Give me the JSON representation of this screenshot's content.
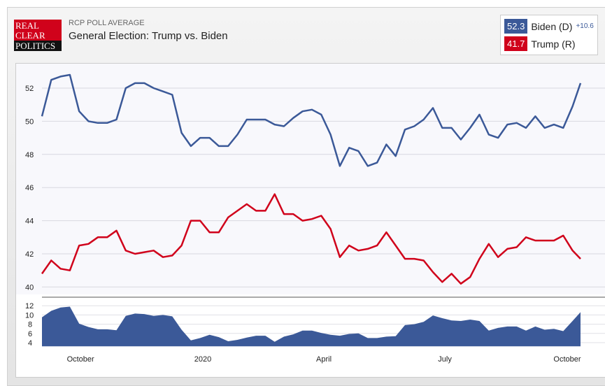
{
  "header": {
    "subtitle": "RCP POLL AVERAGE",
    "title": "General Election: Trump vs. Biden",
    "logo_text": [
      "REAL",
      "CLEAR",
      "POLITICS"
    ]
  },
  "legend": {
    "biden": {
      "value": "52.3",
      "label": "Biden (D)",
      "spread": "+10.6"
    },
    "trump": {
      "value": "41.7",
      "label": "Trump (R)"
    }
  },
  "colors": {
    "biden": "#3b5998",
    "trump": "#d0021b"
  },
  "chart_data": {
    "type": "line",
    "ylim": [
      40,
      53
    ],
    "yticks": [
      40,
      42,
      44,
      46,
      48,
      50,
      52
    ],
    "spread_ylim": [
      3,
      12.5
    ],
    "spread_yticks": [
      4,
      6,
      8,
      10,
      12
    ],
    "xlim": [
      "2019-09-02",
      "2020-10-11"
    ],
    "xticks": [
      {
        "date": "2019-10-01",
        "label": "October"
      },
      {
        "date": "2020-01-01",
        "label": "2020"
      },
      {
        "date": "2020-04-01",
        "label": "April"
      },
      {
        "date": "2020-07-01",
        "label": "July"
      },
      {
        "date": "2020-10-01",
        "label": "October"
      }
    ],
    "dates": [
      "2019-09-02",
      "2019-09-09",
      "2019-09-16",
      "2019-09-23",
      "2019-09-30",
      "2019-10-07",
      "2019-10-14",
      "2019-10-21",
      "2019-10-28",
      "2019-11-04",
      "2019-11-11",
      "2019-11-18",
      "2019-11-25",
      "2019-12-02",
      "2019-12-09",
      "2019-12-16",
      "2019-12-23",
      "2019-12-30",
      "2020-01-06",
      "2020-01-13",
      "2020-01-20",
      "2020-01-27",
      "2020-02-03",
      "2020-02-10",
      "2020-02-17",
      "2020-02-24",
      "2020-03-02",
      "2020-03-09",
      "2020-03-16",
      "2020-03-23",
      "2020-03-30",
      "2020-04-06",
      "2020-04-13",
      "2020-04-20",
      "2020-04-27",
      "2020-05-04",
      "2020-05-11",
      "2020-05-18",
      "2020-05-25",
      "2020-06-01",
      "2020-06-08",
      "2020-06-15",
      "2020-06-22",
      "2020-06-29",
      "2020-07-06",
      "2020-07-13",
      "2020-07-20",
      "2020-07-27",
      "2020-08-03",
      "2020-08-10",
      "2020-08-17",
      "2020-08-24",
      "2020-08-31",
      "2020-09-07",
      "2020-09-14",
      "2020-09-21",
      "2020-09-28",
      "2020-10-05",
      "2020-10-11"
    ],
    "series": [
      {
        "name": "Biden (D)",
        "values": [
          50.3,
          52.5,
          52.7,
          52.8,
          50.6,
          50,
          49.9,
          49.9,
          50.1,
          52,
          52.3,
          52.3,
          52,
          51.8,
          51.6,
          49.3,
          48.5,
          49,
          49,
          48.5,
          48.5,
          49.2,
          50.1,
          50.1,
          50.1,
          49.8,
          49.7,
          50.2,
          50.6,
          50.7,
          50.4,
          49.2,
          47.3,
          48.4,
          48.2,
          47.3,
          47.5,
          48.6,
          47.9,
          49.5,
          49.7,
          50.1,
          50.8,
          49.6,
          49.6,
          48.9,
          49.6,
          50.4,
          49.2,
          49,
          49.8,
          49.9,
          49.6,
          50.3,
          49.6,
          49.8,
          49.6,
          50.9,
          52.3
        ]
      },
      {
        "name": "Trump (R)",
        "values": [
          40.8,
          41.6,
          41.1,
          41,
          42.5,
          42.6,
          43,
          43,
          43.4,
          42.2,
          42,
          42.1,
          42.2,
          41.8,
          41.9,
          42.5,
          44,
          44,
          43.3,
          43.3,
          44.2,
          44.6,
          45,
          44.6,
          44.6,
          45.6,
          44.4,
          44.4,
          44,
          44.1,
          44.3,
          43.5,
          41.8,
          42.5,
          42.2,
          42.3,
          42.5,
          43.3,
          42.5,
          41.7,
          41.7,
          41.6,
          40.9,
          40.3,
          40.8,
          40.2,
          40.6,
          41.7,
          42.6,
          41.8,
          42.3,
          42.4,
          43,
          42.8,
          42.8,
          42.8,
          43.1,
          42.2,
          41.7
        ]
      }
    ]
  }
}
